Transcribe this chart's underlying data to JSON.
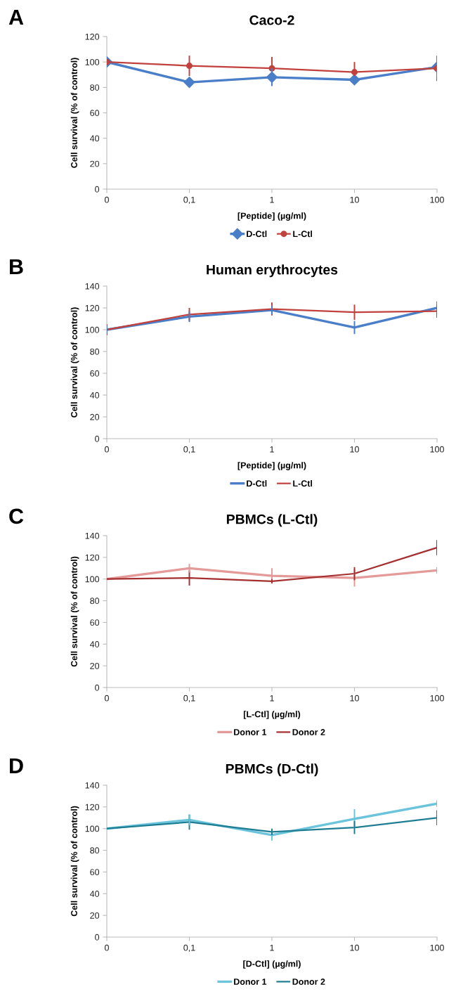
{
  "chart_data": [
    {
      "type": "line",
      "title": "Caco-2",
      "xlabel": "[Peptide] (µg/ml)",
      "ylabel": "Cell survival (% of control)",
      "annotations": [
        "A"
      ],
      "categories": [
        "0",
        "0,1",
        "1",
        "10",
        "100"
      ],
      "ylim": [
        0,
        120
      ],
      "yticks": [
        0,
        20,
        40,
        60,
        80,
        100,
        120
      ],
      "grid": false,
      "legend": "bottom",
      "series": [
        {
          "name": "D-Ctl",
          "color": "#4a7ec8",
          "marker": "diamond",
          "values": [
            100,
            84,
            88,
            86,
            96
          ],
          "errors": [
            null,
            2,
            7,
            3,
            8
          ]
        },
        {
          "name": "L-Ctl",
          "color": "#c0413d",
          "marker": "circle",
          "values": [
            100,
            97,
            95,
            92,
            95
          ],
          "errors": [
            null,
            8,
            9,
            8,
            10
          ]
        }
      ]
    },
    {
      "type": "line",
      "title": "Human erythrocytes",
      "xlabel": "[Peptide] (µg/ml)",
      "ylabel": "Cell survival (% of control)",
      "annotations": [
        "B"
      ],
      "categories": [
        "0",
        "0,1",
        "1",
        "10",
        "100"
      ],
      "ylim": [
        0,
        140
      ],
      "yticks": [
        0,
        20,
        40,
        60,
        80,
        100,
        120,
        140
      ],
      "grid": false,
      "legend": "bottom",
      "series": [
        {
          "name": "D-Ctl",
          "color": "#4a7ec8",
          "values": [
            100,
            112,
            118,
            102,
            120
          ],
          "errors": [
            4,
            5,
            4,
            6,
            6
          ]
        },
        {
          "name": "L-Ctl",
          "color": "#c0413d",
          "values": [
            100,
            114,
            119,
            116,
            117
          ],
          "errors": [
            5,
            6,
            6,
            7,
            6
          ]
        }
      ]
    },
    {
      "type": "line",
      "title": "PBMCs (L-Ctl)",
      "xlabel": "[L-Ctl] (µg/ml)",
      "ylabel": "Cell survival (% of control)",
      "annotations": [
        "C"
      ],
      "categories": [
        "0",
        "0,1",
        "1",
        "10",
        "100"
      ],
      "ylim": [
        0,
        140
      ],
      "yticks": [
        0,
        20,
        40,
        60,
        80,
        100,
        120,
        140
      ],
      "grid": false,
      "legend": "bottom",
      "series": [
        {
          "name": "Donor 1",
          "color": "#e39a98",
          "values": [
            100,
            110,
            103,
            101,
            108
          ],
          "errors": [
            null,
            4,
            7,
            8,
            3
          ]
        },
        {
          "name": "Donor 2",
          "color": "#a3302f",
          "values": [
            100,
            101,
            98,
            105,
            129
          ],
          "errors": [
            null,
            7,
            2,
            6,
            7
          ]
        }
      ]
    },
    {
      "type": "line",
      "title": "PBMCs (D-Ctl)",
      "xlabel": "[D-Ctl] (µg/ml)",
      "ylabel": "Cell survival (% of control)",
      "annotations": [
        "D"
      ],
      "categories": [
        "0",
        "0,1",
        "1",
        "10",
        "100"
      ],
      "ylim": [
        0,
        140
      ],
      "yticks": [
        0,
        20,
        40,
        60,
        80,
        100,
        120,
        140
      ],
      "grid": false,
      "legend": "bottom",
      "series": [
        {
          "name": "Donor 1",
          "color": "#6cc4dc",
          "values": [
            100,
            108,
            94,
            109,
            123
          ],
          "errors": [
            null,
            5,
            5,
            9,
            3
          ]
        },
        {
          "name": "Donor 2",
          "color": "#1f7d93",
          "values": [
            100,
            106,
            97,
            101,
            110
          ],
          "errors": [
            null,
            7,
            3,
            6,
            7
          ]
        }
      ]
    }
  ]
}
